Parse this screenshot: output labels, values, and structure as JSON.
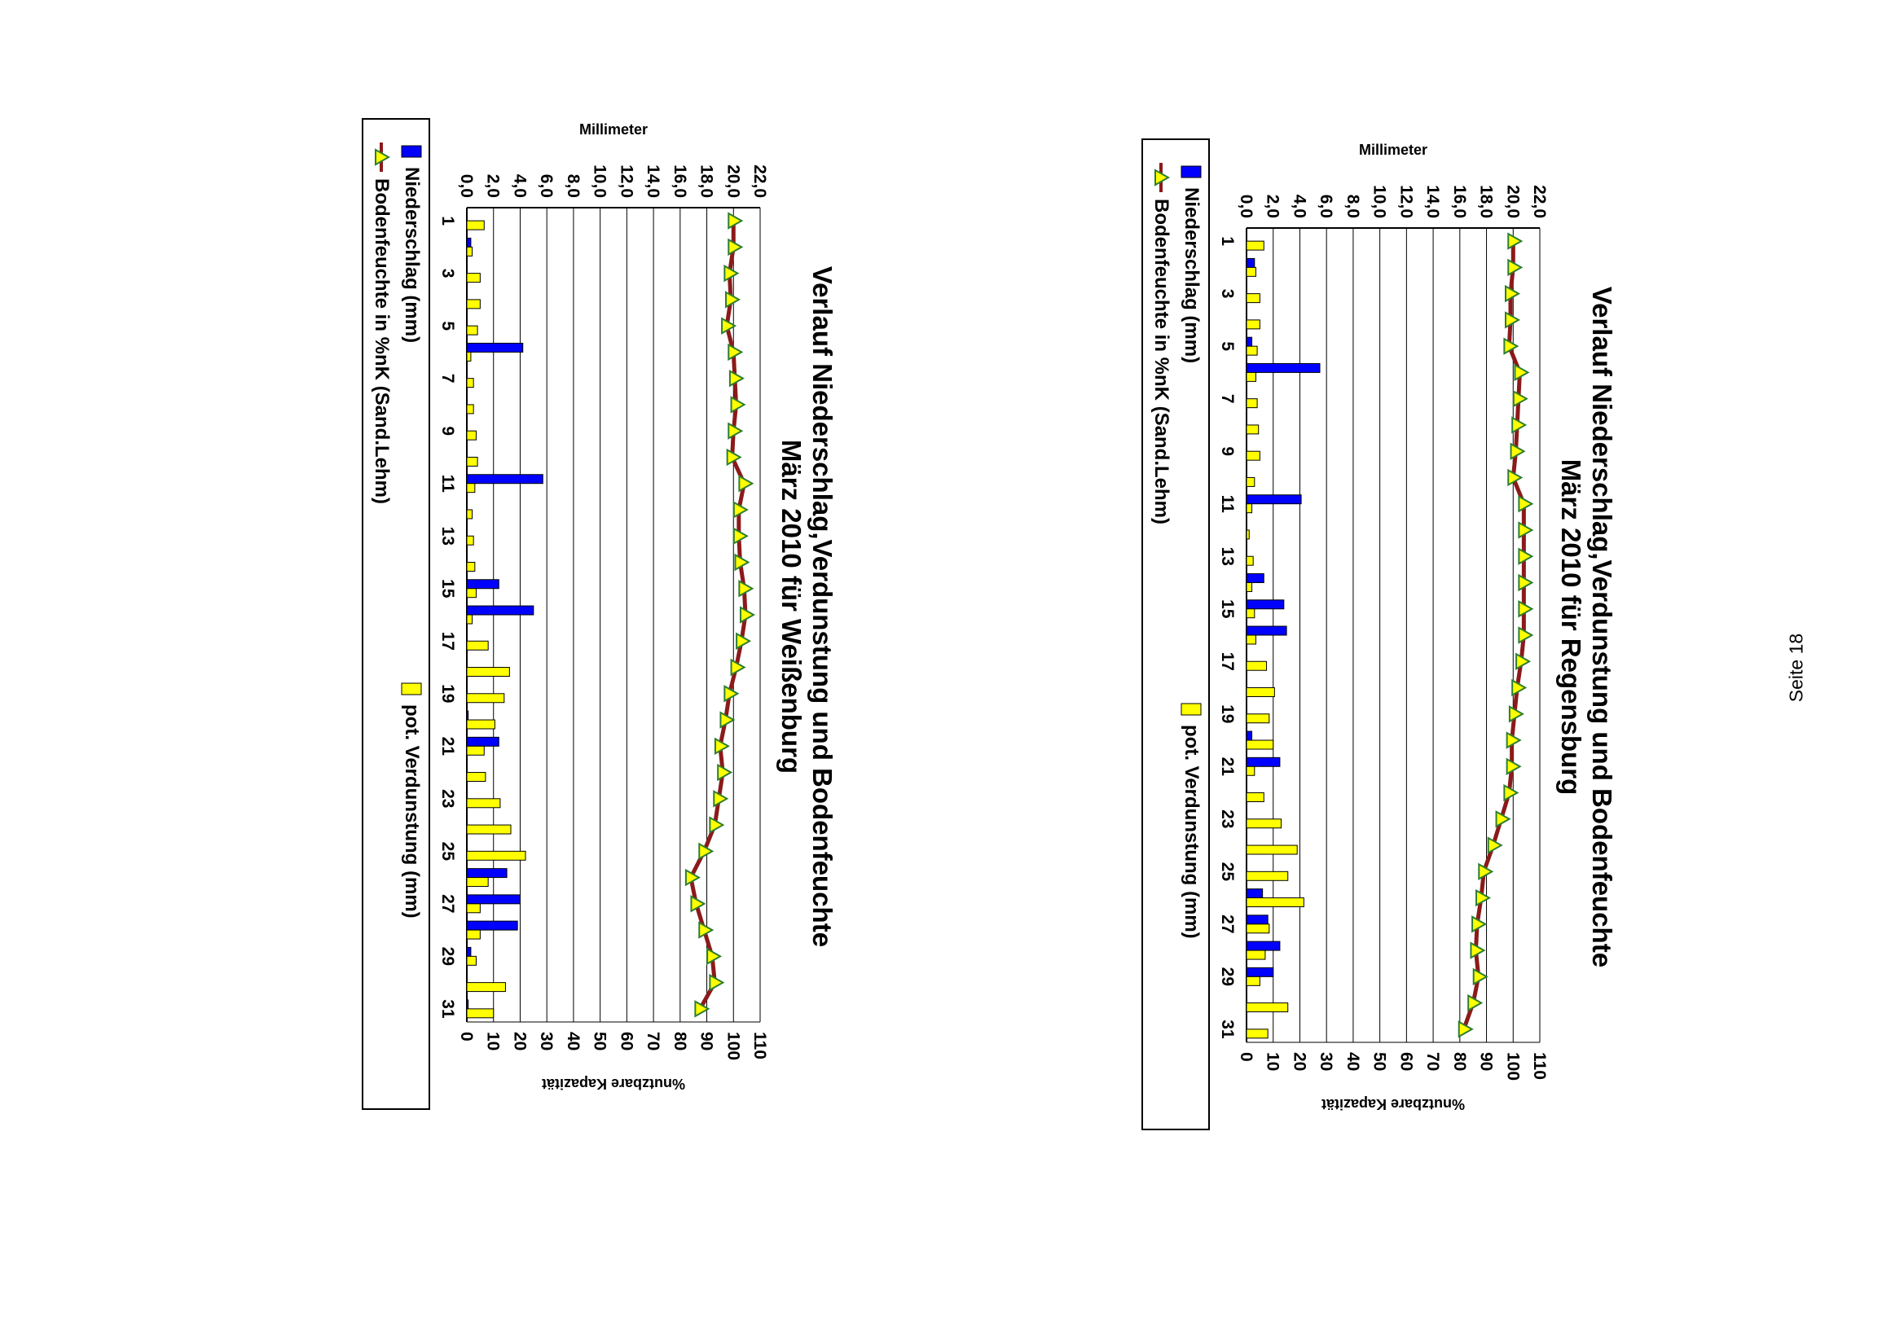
{
  "page": {
    "page_number": "Seite 18"
  },
  "chart_data": [
    {
      "type": "bar",
      "title": "Verlauf Niederschlag,Verdunstung und Bodenfeuchte",
      "subtitle": "März 2010 für Weißenburg",
      "xlabel": "",
      "ylabel": "Millimeter",
      "y2label": "%nutzbare Kapazität",
      "ylim": [
        0,
        22
      ],
      "y2lim": [
        0,
        110
      ],
      "yticks": [
        "0,0",
        "2,0",
        "4,0",
        "6,0",
        "8,0",
        "10,0",
        "12,0",
        "14,0",
        "16,0",
        "18,0",
        "20,0",
        "22,0"
      ],
      "y2ticks": [
        "0",
        "10",
        "20",
        "30",
        "40",
        "50",
        "60",
        "70",
        "80",
        "90",
        "100",
        "110"
      ],
      "grid": true,
      "legend_placement": "bottom",
      "x": [
        1,
        2,
        3,
        4,
        5,
        6,
        7,
        8,
        9,
        10,
        11,
        12,
        13,
        14,
        15,
        16,
        17,
        18,
        19,
        20,
        21,
        22,
        23,
        24,
        25,
        26,
        27,
        28,
        29,
        30,
        31
      ],
      "xticks": [
        "1",
        "3",
        "5",
        "7",
        "9",
        "11",
        "13",
        "15",
        "17",
        "19",
        "21",
        "23",
        "25",
        "27",
        "29",
        "31"
      ],
      "series": [
        {
          "name": "Niederschlag  (mm)",
          "type": "bar",
          "axis": "left",
          "color": "#0000ff",
          "values": [
            0,
            0.3,
            0,
            0,
            0,
            4.2,
            0,
            0,
            0,
            0,
            5.7,
            0,
            0,
            0,
            2.4,
            5,
            0,
            0,
            0,
            0.1,
            2.4,
            0,
            0,
            0,
            0,
            3,
            4,
            3.8,
            0.3,
            0,
            0.1
          ]
        },
        {
          "name": "pot. Verdunstung (mm)",
          "type": "bar",
          "axis": "left",
          "color": "#ffff00",
          "values": [
            1.3,
            0.4,
            1,
            1,
            0.8,
            0.3,
            0.5,
            0.5,
            0.7,
            0.8,
            0.6,
            0.4,
            0.5,
            0.6,
            0.7,
            0.4,
            1.6,
            3.2,
            2.8,
            2.1,
            1.3,
            1.4,
            2.5,
            3.3,
            4.4,
            1.6,
            1,
            1,
            0.7,
            2.9,
            2
          ]
        },
        {
          "name": "Bodenfeuchte in %nK (Sand.Lehm)",
          "type": "line",
          "axis": "right",
          "color": "#8b1a1a",
          "marker_color": "#ffff00",
          "values": [
            100,
            100,
            98.5,
            99,
            97.5,
            100,
            100.5,
            101,
            100,
            99.5,
            104,
            102,
            102,
            102.5,
            104,
            104.5,
            103,
            101,
            98.5,
            97,
            95,
            96,
            94.5,
            93,
            89,
            84,
            86,
            89,
            92,
            93,
            87.5
          ]
        }
      ]
    },
    {
      "type": "bar",
      "title": "Verlauf Niederschlag,Verdunstung und Bodenfeuchte",
      "subtitle": "März 2010 für Regensburg",
      "xlabel": "",
      "ylabel": "Millimeter",
      "y2label": "%nutzbare Kapazität",
      "ylim": [
        0,
        22
      ],
      "y2lim": [
        0,
        110
      ],
      "yticks": [
        "0,0",
        "2,0",
        "4,0",
        "6,0",
        "8,0",
        "10,0",
        "12,0",
        "14,0",
        "16,0",
        "18,0",
        "20,0",
        "22,0"
      ],
      "y2ticks": [
        "0",
        "10",
        "20",
        "30",
        "40",
        "50",
        "60",
        "70",
        "80",
        "90",
        "100",
        "110"
      ],
      "grid": true,
      "legend_placement": "bottom",
      "x": [
        1,
        2,
        3,
        4,
        5,
        6,
        7,
        8,
        9,
        10,
        11,
        12,
        13,
        14,
        15,
        16,
        17,
        18,
        19,
        20,
        21,
        22,
        23,
        24,
        25,
        26,
        27,
        28,
        29,
        30,
        31
      ],
      "xticks": [
        "1",
        "3",
        "5",
        "7",
        "9",
        "11",
        "13",
        "15",
        "17",
        "19",
        "21",
        "23",
        "25",
        "27",
        "29",
        "31"
      ],
      "series": [
        {
          "name": "Niederschlag  (mm)",
          "type": "bar",
          "axis": "left",
          "color": "#0000ff",
          "values": [
            0,
            0.6,
            0,
            0,
            0.4,
            5.5,
            0,
            0,
            0,
            0,
            4.1,
            0,
            0,
            1.3,
            2.8,
            3,
            0,
            0,
            0,
            0.4,
            2.5,
            0,
            0,
            0,
            0,
            1.2,
            1.6,
            2.5,
            2,
            0,
            0
          ]
        },
        {
          "name": "pot. Verdunstung (mm)",
          "type": "bar",
          "axis": "left",
          "color": "#ffff00",
          "values": [
            1.3,
            0.7,
            1,
            1,
            0.8,
            0.7,
            0.8,
            0.9,
            1,
            0.6,
            0.4,
            0.2,
            0.5,
            0.4,
            0.6,
            0.7,
            1.5,
            2.1,
            1.7,
            2,
            0.6,
            1.3,
            2.6,
            3.8,
            3.1,
            4.3,
            1.7,
            1.4,
            1,
            3.1,
            1.6
          ]
        },
        {
          "name": "Bodenfeuchte in %nK (Sand.Lehm)",
          "type": "line",
          "axis": "right",
          "color": "#8b1a1a",
          "marker_color": "#ffff00",
          "values": [
            100,
            100,
            99,
            99,
            98.5,
            102.5,
            102,
            101.5,
            101,
            100,
            104,
            104,
            104,
            104,
            104,
            104,
            103,
            101.5,
            100.5,
            99.5,
            99.5,
            98.5,
            95.5,
            92.5,
            89,
            88,
            86.5,
            86,
            87,
            85,
            81.5
          ]
        }
      ]
    }
  ]
}
